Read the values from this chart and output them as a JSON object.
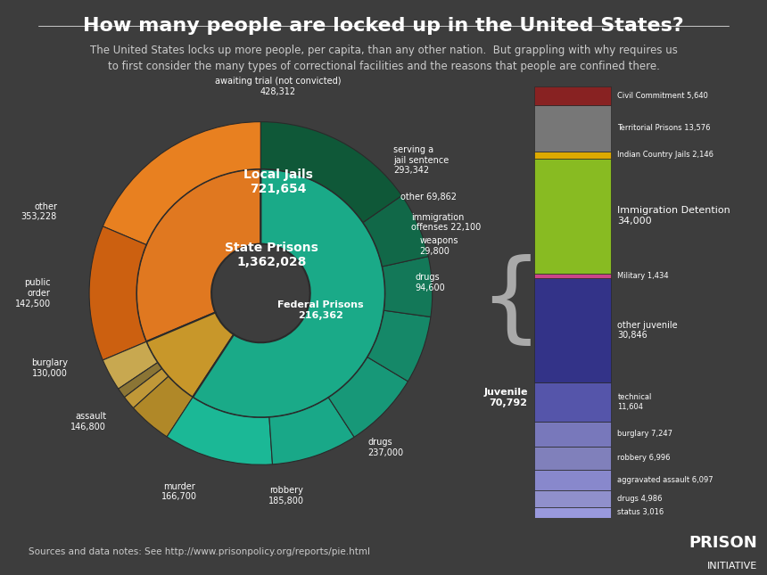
{
  "title": "How many people are locked up in the United States?",
  "subtitle": "The United States locks up more people, per capita, than any other nation.  But grappling with why requires us\nto first consider the many types of correctional facilities and the reasons that people are confined there.",
  "background_color": "#3d3d3d",
  "text_color": "#ffffff",
  "outer_pie": {
    "labels": [
      "awaiting trial\n(not convicted)\n428,312",
      "serving a\njail sentence\n293,342",
      "other 69,862",
      "immigration\noffenses 22,100",
      "weapons\n29,800",
      "drugs\n94,600",
      "drugs\n237,000",
      "robbery\n185,800",
      "murder\n166,700",
      "assault\n146,800",
      "burglary\n130,000",
      "public\norder\n142,500",
      "other\n353,228"
    ],
    "values": [
      428312,
      293342,
      69862,
      22100,
      29800,
      94600,
      237000,
      185800,
      166700,
      146800,
      130000,
      142500,
      353228
    ],
    "colors": [
      "#e07820",
      "#c45e10",
      "#c8a040",
      "#8b7030",
      "#c09030",
      "#b08020",
      "#20a080",
      "#1a9070",
      "#168060",
      "#147060",
      "#126050",
      "#105040",
      "#0e4030"
    ],
    "explode": [
      0,
      0,
      0,
      0,
      0,
      0,
      0,
      0,
      0,
      0,
      0,
      0,
      0
    ]
  },
  "main_slices": [
    {
      "label": "Local Jails\n721,654",
      "value": 721654,
      "color": "#e07820",
      "text_color": "#ffffff"
    },
    {
      "label": "Federal Prisons\n216,362",
      "value": 216362,
      "color": "#c8972a",
      "text_color": "#ffffff"
    },
    {
      "label": "State Prisons\n1,362,028",
      "value": 1362028,
      "color": "#1aaa88",
      "text_color": "#ffffff"
    }
  ],
  "local_jail_slices": [
    {
      "label": "awaiting trial (not convicted)\n428,312",
      "value": 428312,
      "color": "#e07820"
    },
    {
      "label": "serving a\njail sentence\n293,342",
      "value": 293342,
      "color": "#c45e10"
    }
  ],
  "federal_slices": [
    {
      "label": "other 69,862",
      "value": 69862,
      "color": "#b8a060"
    },
    {
      "label": "immigration\noffenses 22,100",
      "value": 22100,
      "color": "#8b7030"
    },
    {
      "label": "weapons\n29,800",
      "value": 29800,
      "color": "#c09030"
    },
    {
      "label": "drugs\n94,600",
      "value": 94600,
      "color": "#b08020"
    }
  ],
  "state_slices": [
    {
      "label": "drugs\n237,000",
      "value": 237000,
      "color": "#1aaa88"
    },
    {
      "label": "robbery\n185,800",
      "value": 185800,
      "color": "#18a080"
    },
    {
      "label": "murder\n166,700",
      "value": 166700,
      "color": "#169070"
    },
    {
      "label": "assault\n146,800",
      "value": 146800,
      "color": "#148060"
    },
    {
      "label": "burglary\n130,000",
      "value": 130000,
      "color": "#127060"
    },
    {
      "label": "public order\n142,500",
      "value": 142500,
      "color": "#106050"
    },
    {
      "label": "other\n353,228",
      "value": 353228,
      "color": "#0e5040"
    }
  ],
  "right_bars": [
    {
      "label": "Juvenile\n70,792",
      "value": 70792,
      "color": "#8888cc",
      "sub_bars": [
        {
          "label": "status 3,016",
          "value": 3016,
          "color": "#9999dd"
        },
        {
          "label": "drugs 4,986",
          "value": 4986,
          "color": "#9090cc"
        },
        {
          "label": "aggravated assault 6,097",
          "value": 6097,
          "color": "#8888cc"
        },
        {
          "label": "robbery 6,996",
          "value": 6996,
          "color": "#8080bb"
        },
        {
          "label": "burglary 7,247",
          "value": 7247,
          "color": "#7878bb"
        },
        {
          "label": "technical\n11,604",
          "value": 11604,
          "color": "#4444aa"
        },
        {
          "label": "other juvenile\n30,846",
          "value": 30846,
          "color": "#333388"
        }
      ]
    },
    {
      "label": "Military 1,434",
      "value": 1434,
      "color": "#cc4488"
    },
    {
      "label": "Immigration Detention\n34,000",
      "value": 34000,
      "color": "#88bb22"
    },
    {
      "label": "Indian Country Jails 2,146",
      "value": 2146,
      "color": "#ddaa00"
    },
    {
      "label": "Territorial Prisons 13,576",
      "value": 13576,
      "color": "#888888"
    },
    {
      "label": "Civil Commitment 5,640",
      "value": 5640,
      "color": "#882222"
    }
  ],
  "source": "Sources and data notes: See http://www.prisonpolicy.org/reports/pie.html",
  "footer_logo": "PRISON\nINITIATIVE"
}
